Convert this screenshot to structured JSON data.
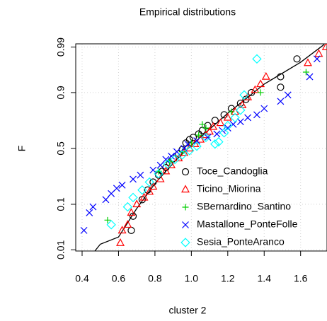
{
  "chart_data": {
    "type": "scatter",
    "title": "Empirical distributions",
    "x_label": "cluster 2",
    "y_label": "F",
    "y_scale": "normal-probability",
    "xlim": [
      0.365,
      1.745
    ],
    "ylim": [
      0.0093,
      0.9918
    ],
    "xticks": [
      0.4,
      0.6,
      0.8,
      {
        "value": 1,
        "label": "1.0"
      },
      1.2,
      1.4,
      1.6
    ],
    "yticks": [
      0.01,
      0.1,
      0.5,
      0.9,
      0.99
    ],
    "grid": true,
    "legend": "bottomright",
    "series": [
      {
        "name": "Toce_Candoglia",
        "color": "#000000",
        "marker": "circle",
        "x": [
          0.67,
          0.68,
          0.73,
          0.76,
          0.79,
          0.82,
          0.84,
          0.86,
          0.88,
          0.9,
          0.93,
          0.95,
          0.97,
          0.99,
          1.01,
          1.04,
          1.06,
          1.09,
          1.13,
          1.18,
          1.22,
          1.27,
          1.3,
          1.33,
          1.49,
          1.49,
          1.58
        ],
        "values": [
          0.03,
          0.06,
          0.12,
          0.17,
          0.22,
          0.27,
          0.3,
          0.33,
          0.37,
          0.41,
          0.45,
          0.49,
          0.55,
          0.58,
          0.6,
          0.63,
          0.66,
          0.7,
          0.74,
          0.78,
          0.82,
          0.85,
          0.87,
          0.9,
          0.92,
          0.95,
          0.98
        ]
      },
      {
        "name": "Ticino_Miorina",
        "color": "#ff0000",
        "marker": "triangle",
        "x": [
          0.61,
          0.62,
          0.65,
          0.67,
          0.7,
          0.74,
          0.77,
          0.79,
          0.83,
          0.86,
          0.89,
          0.93,
          0.96,
          0.99,
          1.02,
          1.05,
          1.08,
          1.1,
          1.12,
          1.16,
          1.2,
          1.24,
          1.28,
          1.31,
          1.35,
          1.38,
          1.41,
          1.64,
          1.7,
          1.74
        ],
        "values": [
          0.015,
          0.03,
          0.04,
          0.07,
          0.1,
          0.13,
          0.16,
          0.19,
          0.24,
          0.3,
          0.35,
          0.41,
          0.46,
          0.5,
          0.54,
          0.58,
          0.62,
          0.65,
          0.69,
          0.72,
          0.76,
          0.8,
          0.84,
          0.88,
          0.91,
          0.93,
          0.95,
          0.975,
          0.985,
          0.99
        ]
      },
      {
        "name": "SBernardino_Santino",
        "color": "#00cd00",
        "marker": "plus",
        "x": [
          0.54,
          0.82,
          0.88,
          0.95,
          1.0,
          1.04,
          1.06,
          1.08,
          1.22,
          1.38,
          1.63
        ],
        "values": [
          0.05,
          0.3,
          0.38,
          0.47,
          0.55,
          0.62,
          0.71,
          0.68,
          0.8,
          0.9,
          0.96
        ]
      },
      {
        "name": "Mastallone_PonteFolle",
        "color": "#0000ff",
        "marker": "cross",
        "x": [
          0.41,
          0.44,
          0.46,
          0.53,
          0.56,
          0.59,
          0.62,
          0.68,
          0.72,
          0.79,
          0.83,
          0.86,
          0.89,
          0.92,
          0.96,
          0.98,
          1.03,
          1.09,
          1.14,
          1.17,
          1.2,
          1.23,
          1.27,
          1.31,
          1.36,
          1.4,
          1.49,
          1.53,
          1.65,
          1.69
        ],
        "values": [
          0.03,
          0.07,
          0.09,
          0.12,
          0.15,
          0.18,
          0.2,
          0.24,
          0.27,
          0.31,
          0.35,
          0.4,
          0.43,
          0.47,
          0.5,
          0.54,
          0.57,
          0.6,
          0.63,
          0.66,
          0.68,
          0.71,
          0.73,
          0.76,
          0.78,
          0.82,
          0.86,
          0.89,
          0.95,
          0.98
        ]
      },
      {
        "name": "Sesia_PonteAranco",
        "color": "#00ffff",
        "marker": "diamond",
        "x": [
          0.56,
          0.65,
          0.68,
          0.73,
          0.77,
          0.82,
          0.87,
          0.91,
          0.95,
          0.99,
          1.03,
          1.08,
          1.13,
          1.15,
          1.18,
          1.2,
          1.24,
          1.27,
          1.29,
          1.36
        ],
        "values": [
          0.04,
          0.09,
          0.13,
          0.17,
          0.22,
          0.28,
          0.36,
          0.4,
          0.44,
          0.48,
          0.52,
          0.6,
          0.54,
          0.56,
          0.64,
          0.7,
          0.76,
          0.81,
          0.89,
          0.98
        ]
      }
    ],
    "curve": {
      "color": "#000000",
      "x": [
        0.47,
        0.5,
        0.6,
        0.7,
        0.8,
        0.9,
        1.0,
        1.2,
        1.4,
        1.6,
        1.73
      ],
      "values": [
        0.0093,
        0.014,
        0.021,
        0.084,
        0.21,
        0.37,
        0.53,
        0.79,
        0.93,
        0.976,
        0.9915
      ]
    }
  }
}
